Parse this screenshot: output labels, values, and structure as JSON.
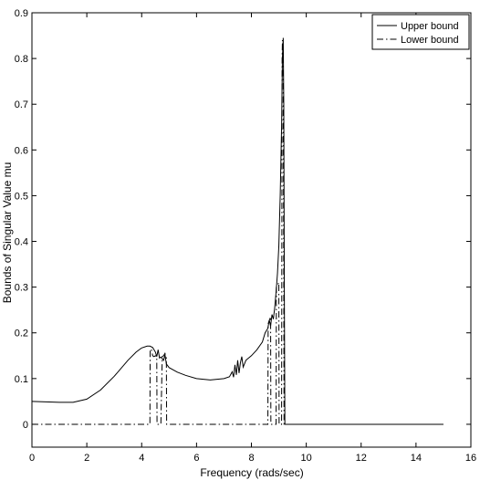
{
  "chart_data": {
    "type": "line",
    "title": "",
    "xlabel": "Frequency (rads/sec)",
    "ylabel": "Bounds of Singular Value mu",
    "xlim": [
      0,
      16
    ],
    "ylim": [
      -0.05,
      0.9
    ],
    "xticks": [
      0,
      2,
      4,
      6,
      8,
      10,
      12,
      14,
      16
    ],
    "yticks": [
      0,
      0.1,
      0.2,
      0.3,
      0.4,
      0.5,
      0.6,
      0.7,
      0.8,
      0.9
    ],
    "xtick_labels": [
      "0",
      "2",
      "4",
      "6",
      "8",
      "10",
      "12",
      "14",
      "16"
    ],
    "ytick_labels": [
      "0",
      "0.1",
      "0.2",
      "0.3",
      "0.4",
      "0.5",
      "0.6",
      "0.7",
      "0.8",
      "0.9"
    ],
    "grid": false,
    "legend_position": "top-right",
    "series": [
      {
        "name": "Upper bound",
        "style": "solid",
        "color": "#000000",
        "x": [
          0,
          0.5,
          1.0,
          1.5,
          2.0,
          2.5,
          3.0,
          3.5,
          3.8,
          4.0,
          4.2,
          4.3,
          4.4,
          4.5,
          4.55,
          4.6,
          4.65,
          4.7,
          4.8,
          4.85,
          4.9,
          5.0,
          5.3,
          5.6,
          6.0,
          6.5,
          7.0,
          7.2,
          7.3,
          7.35,
          7.4,
          7.45,
          7.5,
          7.55,
          7.6,
          7.65,
          7.7,
          7.8,
          8.0,
          8.2,
          8.4,
          8.5,
          8.6,
          8.65,
          8.7,
          8.75,
          8.8,
          8.85,
          8.9,
          8.95,
          9.0,
          9.05,
          9.1,
          9.13,
          9.16,
          9.18,
          9.2,
          9.22,
          9.25,
          9.5,
          10,
          12,
          14,
          15
        ],
        "y": [
          0.05,
          0.049,
          0.048,
          0.048,
          0.055,
          0.075,
          0.105,
          0.14,
          0.158,
          0.167,
          0.171,
          0.171,
          0.168,
          0.158,
          0.148,
          0.163,
          0.145,
          0.147,
          0.14,
          0.152,
          0.132,
          0.124,
          0.114,
          0.107,
          0.1,
          0.097,
          0.1,
          0.104,
          0.115,
          0.103,
          0.13,
          0.108,
          0.14,
          0.112,
          0.135,
          0.148,
          0.125,
          0.14,
          0.15,
          0.163,
          0.18,
          0.2,
          0.21,
          0.228,
          0.215,
          0.24,
          0.23,
          0.255,
          0.29,
          0.33,
          0.39,
          0.5,
          0.65,
          0.8,
          0.845,
          0.7,
          0.3,
          0.0,
          0.0,
          0.0,
          0.0,
          0.0,
          0.0,
          0.0
        ]
      },
      {
        "name": "Lower bound",
        "style": "dashdot",
        "color": "#000000",
        "x": [
          0,
          4.3,
          4.31,
          4.35,
          4.4,
          4.45,
          4.5,
          4.55,
          4.56,
          4.6,
          4.7,
          4.75,
          4.8,
          4.85,
          4.9,
          4.91,
          8.6,
          8.61,
          8.7,
          8.71,
          8.9,
          8.91,
          9.0,
          9.01,
          9.1,
          9.12,
          9.13,
          9.16,
          9.18,
          9.19,
          15
        ],
        "y": [
          0,
          0,
          0.16,
          0.165,
          0.15,
          0.148,
          0.15,
          0.148,
          0.0,
          0.0,
          0.0,
          0.148,
          0.15,
          0.155,
          0.145,
          0.0,
          0.0,
          0.22,
          0.235,
          0.0,
          0.0,
          0.3,
          0.31,
          0.0,
          0.0,
          0.8,
          0.84,
          0.75,
          0.3,
          0.0,
          0.0
        ]
      }
    ]
  }
}
